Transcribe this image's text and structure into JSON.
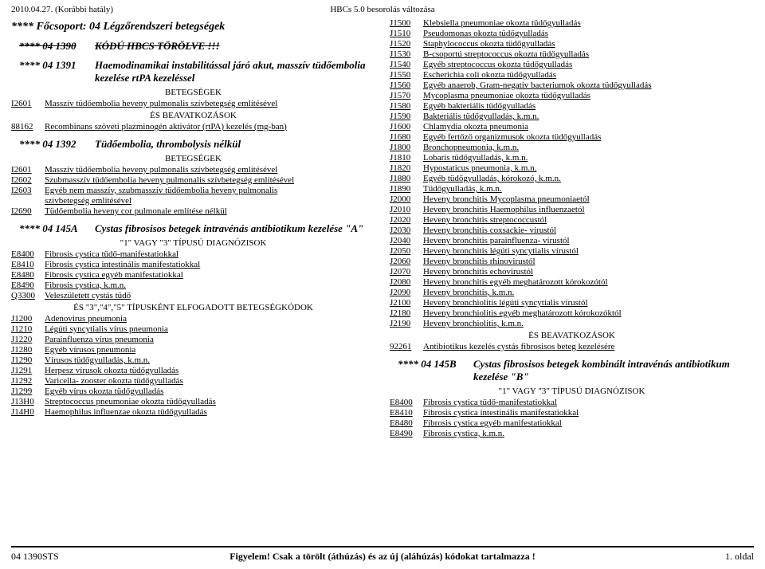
{
  "header": {
    "left": "2010.04.27. (Korábbi hatály)",
    "center": "HBCs 5.0 besorolás változása"
  },
  "left": {
    "maingroup": "**** Főcsoport: 04 Légzőrendszeri betegségek",
    "block1": {
      "label": "**** 04 1390",
      "title": "KÓDÚ HBCS TÖRÖLVE !!!"
    },
    "block2": {
      "label": "**** 04 1391",
      "title": "Haemodinamikai instabilitással járó akut, masszív tüdőembolia kezelése rtPA kezeléssel",
      "sect1": "BETEGSÉGEK",
      "r1c": "I2601",
      "r1t": "Masszív tüdőembolia heveny pulmonalis szívbetegség említésével",
      "sect2": "ÉS BEAVATKOZÁSOK",
      "r2c": "88162",
      "r2t": "Recombinans szöveti plazminogén aktivátor (rtPA) kezelés (mg-ban)"
    },
    "block3": {
      "label": "**** 04 1392",
      "title": "Tüdőembolia, thrombolysis nélkül",
      "sect": "BETEGSÉGEK",
      "r1c": "I2601",
      "r1t": "Masszív tüdőembolia heveny pulmonalis szívbetegség említésével",
      "r2c": "I2602",
      "r2t": "Szubmasszív tüdőembolia heveny pulmonalis szívbetegség említésével",
      "r3c": "I2603",
      "r3t": "Egyéb nem masszív, szubmasszív tüdőembolia heveny pulmonalis",
      "r3t2": "szívbetegség említésével",
      "r4c": "I2690",
      "r4t": "Tüdőembolia heveny cor pulmonale említése nélkül"
    },
    "block4": {
      "label": "**** 04 145A",
      "title": "Cystas fibrosisos betegek intravénás antibiotikum kezelése \"A\"",
      "sub1": "\"1\" VAGY \"3\" TÍPUSÚ DIAGNÓZISOK",
      "rows1": [
        {
          "c": "E8400",
          "t": "Fibrosis cystica tüdő-manifestatiokkal"
        },
        {
          "c": "E8410",
          "t": "Fibrosis cystica intestinális manifestatiokkal"
        },
        {
          "c": "E8480",
          "t": "Fibrosis cystica egyéb manifestatiokkal"
        },
        {
          "c": "E8490",
          "t": "Fibrosis cystica, k.m.n."
        },
        {
          "c": "Q3300",
          "t": "Veleszületett cystás tüdő"
        }
      ],
      "sub2": "ÉS \"3\",\"4\",\"5\" TÍPUSKÉNT ELFOGADOTT BETEGSÉGKÓDOK",
      "rows2": [
        {
          "c": "J1200",
          "t": "Adenovirus pneumonia"
        },
        {
          "c": "J1210",
          "t": "Légúti syncytialis vírus pneumonia"
        },
        {
          "c": "J1220",
          "t": "Parainfluenza vírus pneumonia"
        },
        {
          "c": "J1280",
          "t": "Egyéb vírusos pneumonia"
        },
        {
          "c": "J1290",
          "t": "Vírusos tüdőgyulladás, k.m.n."
        },
        {
          "c": "J1291",
          "t": "Herpesz vírusok okozta tüdőgyulladás"
        },
        {
          "c": "J1292",
          "t": "Varicella- zooster okozta tüdőgyulladás"
        },
        {
          "c": "J1299",
          "t": "Egyéb vírus okozta tüdőgyulladás"
        },
        {
          "c": "J13H0",
          "t": "Streptococcus pneumoniae okozta tüdőgyulladás"
        },
        {
          "c": "J14H0",
          "t": "Haemophilus influenzae okozta tüdőgyulladás"
        }
      ]
    }
  },
  "right": {
    "rows1": [
      {
        "c": "J1500",
        "t": "Klebsiella pneumoniae okozta tüdőgyulladás"
      },
      {
        "c": "J1510",
        "t": "Pseudomonas okozta tüdőgyulladás"
      },
      {
        "c": "J1520",
        "t": "Staphylococcus okozta tüdőgyulladás"
      },
      {
        "c": "J1530",
        "t": "B-csoportú streptococcus okozta tüdőgyulladás"
      },
      {
        "c": "J1540",
        "t": "Egyéb streptococcus okozta tüdőgyulladás"
      },
      {
        "c": "J1550",
        "t": "Escherichia coli okozta tüdőgyulladás"
      },
      {
        "c": "J1560",
        "t": "Egyéb anaerob, Gram-negatív bacteriumok okozta tüdőgyulladás"
      },
      {
        "c": "J1570",
        "t": "Mycoplasma pneumoniae okozta tüdőgyulladás"
      },
      {
        "c": "J1580",
        "t": "Egyéb bakteriális tüdőgyulladás"
      },
      {
        "c": "J1590",
        "t": "Bakteriális tüdőgyulladás, k.m.n."
      },
      {
        "c": "J1600",
        "t": "Chlamydia okozta pneumonia"
      },
      {
        "c": "J1680",
        "t": "Egyéb fertőző organizmusok okozta tüdőgyulladás"
      },
      {
        "c": "J1800",
        "t": "Bronchopneumonia, k.m.n."
      },
      {
        "c": "J1810",
        "t": "Lobaris tüdőgyulladás, k.m.n."
      },
      {
        "c": "J1820",
        "t": "Hypostaticus pneumonia, k.m.n."
      },
      {
        "c": "J1880",
        "t": "Egyéb tüdőgyulladás, kórokozó, k.m.n."
      },
      {
        "c": "J1890",
        "t": "Tüdőgyulladás, k.m.n."
      },
      {
        "c": "J2000",
        "t": "Heveny bronchitis Mycoplasma pneumoniaetól"
      },
      {
        "c": "J2010",
        "t": "Heveny bronchitis Haemophilus influenzaetól"
      },
      {
        "c": "J2020",
        "t": "Heveny bronchitis streptococcustól"
      },
      {
        "c": "J2030",
        "t": "Heveny bronchitis coxsackie- vírustól"
      },
      {
        "c": "J2040",
        "t": "Heveny bronchitis parainfluenza- vírustól"
      },
      {
        "c": "J2050",
        "t": "Heveny bronchitis légúti syncytialis vírustól"
      },
      {
        "c": "J2060",
        "t": "Heveny bronchitis rhinovirustól"
      },
      {
        "c": "J2070",
        "t": "Heveny bronchitis echovirustól"
      },
      {
        "c": "J2080",
        "t": "Heveny bronchitis egyéb meghatározott kórokozótól"
      },
      {
        "c": "J2090",
        "t": "Heveny bronchitis, k.m.n."
      },
      {
        "c": "J2100",
        "t": "Heveny bronchiolitis légúti syncytialis vírustól"
      },
      {
        "c": "J2180",
        "t": "Heveny bronchiolitis egyéb meghatározott kórokozóktól"
      },
      {
        "c": "J2190",
        "t": "Heveny bronchiolitis, k.m.n."
      }
    ],
    "sect1": "ÉS BEAVATKOZÁSOK",
    "r92": {
      "c": "92261",
      "t": "Antibiotikus kezelés cystás fibrosisos beteg kezelésére"
    },
    "block5": {
      "label": "**** 04 145B",
      "title": "Cystas fibrosisos betegek kombinált intravénás antibiotikum kezelése \"B\"",
      "sub": "\"1\" VAGY \"3\" TÍPUSÚ DIAGNÓZISOK",
      "rows": [
        {
          "c": "E8400",
          "t": "Fibrosis cystica tüdő-manifestatiokkal"
        },
        {
          "c": "E8410",
          "t": "Fibrosis cystica intestinális manifestatiokkal"
        },
        {
          "c": "E8480",
          "t": "Fibrosis cystica egyéb manifestatiokkal"
        },
        {
          "c": "E8490",
          "t": "Fibrosis cystica, k.m.n."
        }
      ]
    }
  },
  "footer": {
    "left": "04 1390STS",
    "center": "Figyelem! Csak a törölt (áthúzás) és az új (aláhúzás) kódokat tartalmazza !",
    "right": "1. oldal"
  }
}
